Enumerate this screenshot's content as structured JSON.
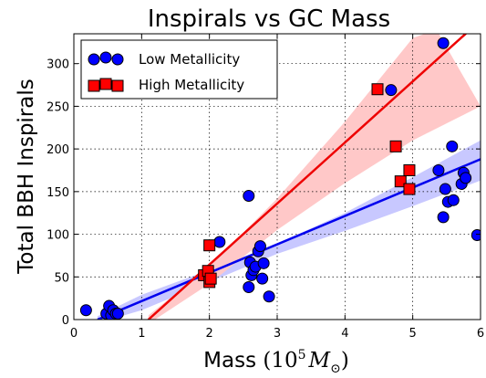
{
  "chart_data": {
    "type": "scatter",
    "title": "Inspirals vs GC Mass",
    "xlabel_main": "Mass",
    "xlabel_unit_base": "(10",
    "xlabel_unit_exp": "5",
    "xlabel_unit_M": "M",
    "xlabel_unit_sub": "⊙",
    "xlabel_unit_close": ")",
    "ylabel": "Total BBH Inspirals",
    "xlim": [
      0,
      6
    ],
    "ylim": [
      0,
      335
    ],
    "xticks": [
      0,
      1,
      2,
      3,
      4,
      5,
      6
    ],
    "yticks": [
      0,
      50,
      100,
      150,
      200,
      250,
      300
    ],
    "grid": true,
    "legend_position": "top-left",
    "series": [
      {
        "name": "Low Metallicity",
        "marker": "circle",
        "color": "#0000ff",
        "fit_color": "#0000ee",
        "band_color": "#c8c8ff",
        "fit": {
          "x": [
            0.35,
            6.0
          ],
          "y": [
            0,
            188
          ]
        },
        "band_lower": [
          [
            0.35,
            -4
          ],
          [
            1,
            11
          ],
          [
            2,
            44
          ],
          [
            3,
            77
          ],
          [
            4,
            104
          ],
          [
            5,
            133
          ],
          [
            6,
            163
          ]
        ],
        "band_upper": [
          [
            0.35,
            4
          ],
          [
            1,
            29
          ],
          [
            2,
            58
          ],
          [
            3,
            89
          ],
          [
            4,
            125
          ],
          [
            5,
            167
          ],
          [
            6,
            210
          ]
        ],
        "x": [
          0.18,
          0.48,
          0.52,
          0.55,
          0.58,
          0.62,
          0.65,
          2.15,
          2.58,
          2.6,
          2.62,
          2.65,
          2.68,
          2.72,
          2.75,
          2.78,
          2.8,
          2.88,
          2.58,
          4.68,
          5.38,
          5.45,
          5.48,
          5.52,
          5.58,
          5.6,
          5.72,
          5.75,
          5.78,
          5.95,
          5.45
        ],
        "y": [
          11,
          7,
          16,
          5,
          11,
          7,
          7,
          91,
          38,
          67,
          52,
          58,
          62,
          80,
          86,
          48,
          66,
          27,
          145,
          269,
          175,
          120,
          153,
          138,
          203,
          140,
          159,
          172,
          166,
          99,
          324
        ]
      },
      {
        "name": "High Metallicity",
        "marker": "square",
        "color": "#ff0000",
        "fit_color": "#ee0000",
        "band_color": "#ffc8c8",
        "fit": {
          "x": [
            1.1,
            5.85
          ],
          "y": [
            0,
            340
          ]
        },
        "band_lower": [
          [
            1.1,
            -5
          ],
          [
            2,
            42
          ],
          [
            3,
            105
          ],
          [
            4,
            160
          ],
          [
            5,
            210
          ],
          [
            6,
            250
          ]
        ],
        "band_upper": [
          [
            1.1,
            5
          ],
          [
            2,
            62
          ],
          [
            3,
            142
          ],
          [
            4,
            232
          ],
          [
            5,
            330
          ],
          [
            5.35,
            340
          ]
        ],
        "x": [
          1.92,
          1.98,
          2.0,
          2.02,
          2.0,
          4.48,
          4.75,
          4.82,
          4.95,
          4.95
        ],
        "y": [
          52,
          57,
          44,
          48,
          87,
          270,
          203,
          162,
          153,
          175
        ]
      }
    ]
  }
}
